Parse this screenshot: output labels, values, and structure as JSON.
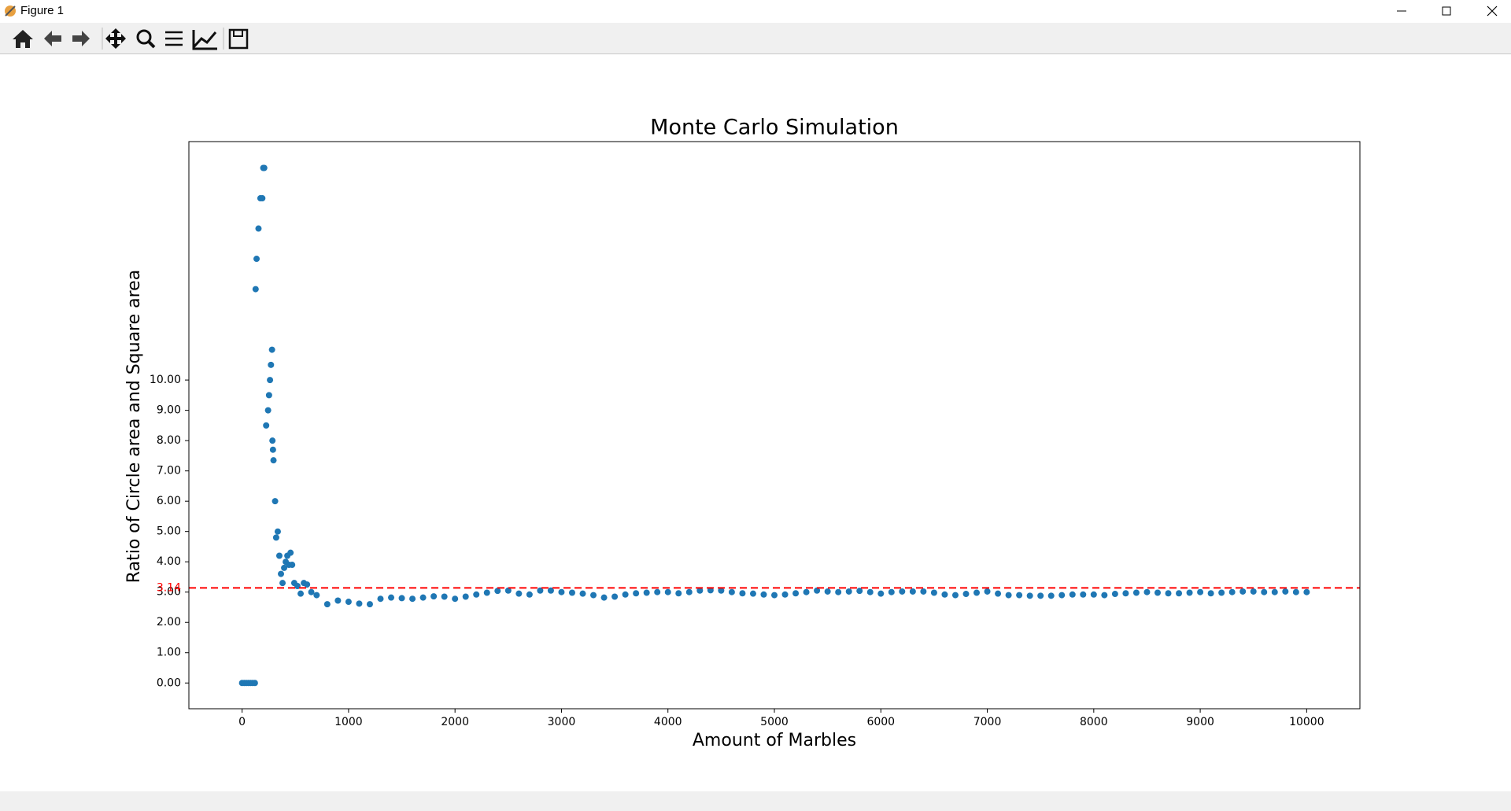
{
  "window": {
    "title": "Figure 1"
  },
  "chart_data": {
    "type": "scatter",
    "title": "Monte Carlo Simulation",
    "xlabel": "Amount of Marbles",
    "ylabel": "Ratio of Circle area and  Square area",
    "xlim": [
      -500,
      10500
    ],
    "ylim": [
      -0.85,
      17.87
    ],
    "xticks": [
      0,
      1000,
      2000,
      3000,
      4000,
      5000,
      6000,
      7000,
      8000,
      9000,
      10000
    ],
    "yticks": [
      {
        "value": 0,
        "label": "0.00"
      },
      {
        "value": 1,
        "label": "1.00"
      },
      {
        "value": 2,
        "label": "2.00"
      },
      {
        "value": 3,
        "label": "3.00"
      },
      {
        "value": 4,
        "label": "4.00"
      },
      {
        "value": 5,
        "label": "5.00"
      },
      {
        "value": 6,
        "label": "6.00"
      },
      {
        "value": 7,
        "label": "7.00"
      },
      {
        "value": 8,
        "label": "8.00"
      },
      {
        "value": 9,
        "label": "9.00"
      },
      {
        "value": 10,
        "label": "10.00"
      }
    ],
    "hline": {
      "y": 3.14,
      "color": "#ff0000"
    },
    "x": [
      0,
      20,
      40,
      60,
      80,
      100,
      120,
      127,
      136,
      154,
      172,
      190,
      199,
      208,
      226,
      244,
      253,
      262,
      271,
      281,
      285,
      290,
      295,
      310,
      320,
      335,
      350,
      365,
      380,
      395,
      410,
      425,
      440,
      455,
      470,
      490,
      520,
      550,
      580,
      610,
      650,
      700,
      800,
      900,
      1000,
      1100,
      1200,
      1300,
      1400,
      1500,
      1600,
      1700,
      1800,
      1900,
      2000,
      2100,
      2200,
      2300,
      2400,
      2500,
      2600,
      2700,
      2800,
      2900,
      3000,
      3100,
      3200,
      3300,
      3400,
      3500,
      3600,
      3700,
      3800,
      3900,
      4000,
      4100,
      4200,
      4300,
      4400,
      4500,
      4600,
      4700,
      4800,
      4900,
      5000,
      5100,
      5200,
      5300,
      5400,
      5500,
      5600,
      5700,
      5800,
      5900,
      6000,
      6100,
      6200,
      6300,
      6400,
      6500,
      6600,
      6700,
      6800,
      6900,
      7000,
      7100,
      7200,
      7300,
      7400,
      7500,
      7600,
      7700,
      7800,
      7900,
      8000,
      8100,
      8200,
      8300,
      8400,
      8500,
      8600,
      8700,
      8800,
      8900,
      9000,
      9100,
      9200,
      9300,
      9400,
      9500,
      9600,
      9700,
      9800,
      9900,
      10000
    ],
    "series": [
      {
        "color": "#1f77b4",
        "values": [
          0,
          0,
          0,
          0,
          0,
          0,
          0,
          13,
          14,
          15,
          16,
          16,
          17,
          17,
          8.5,
          9,
          9.5,
          10,
          10.5,
          11,
          8,
          7.7,
          7.35,
          6,
          4.8,
          5,
          4.2,
          3.6,
          3.3,
          3.8,
          4.0,
          4.2,
          3.9,
          4.3,
          3.9,
          3.3,
          3.2,
          2.95,
          3.3,
          3.25,
          3.0,
          2.9,
          2.6,
          2.72,
          2.68,
          2.62,
          2.6,
          2.78,
          2.82,
          2.8,
          2.78,
          2.82,
          2.86,
          2.85,
          2.78,
          2.85,
          2.92,
          2.98,
          3.04,
          3.05,
          2.95,
          2.92,
          3.05,
          3.05,
          3.0,
          2.98,
          2.95,
          2.9,
          2.82,
          2.85,
          2.92,
          2.96,
          2.98,
          3.0,
          3.0,
          2.96,
          3.0,
          3.05,
          3.06,
          3.05,
          3.0,
          2.96,
          2.95,
          2.92,
          2.9,
          2.92,
          2.96,
          3.0,
          3.05,
          3.02,
          3.0,
          3.02,
          3.04,
          3.0,
          2.95,
          3.0,
          3.02,
          3.02,
          3.02,
          2.98,
          2.92,
          2.9,
          2.94,
          2.98,
          3.02,
          2.95,
          2.9,
          2.9,
          2.88,
          2.88,
          2.88,
          2.9,
          2.92,
          2.92,
          2.92,
          2.9,
          2.94,
          2.96,
          2.98,
          3.0,
          2.98,
          2.96,
          2.96,
          2.98,
          3.0,
          2.96,
          2.98,
          3.0,
          3.02,
          3.02,
          3.0,
          3.0,
          3.02,
          3.0,
          3.0
        ]
      }
    ]
  }
}
